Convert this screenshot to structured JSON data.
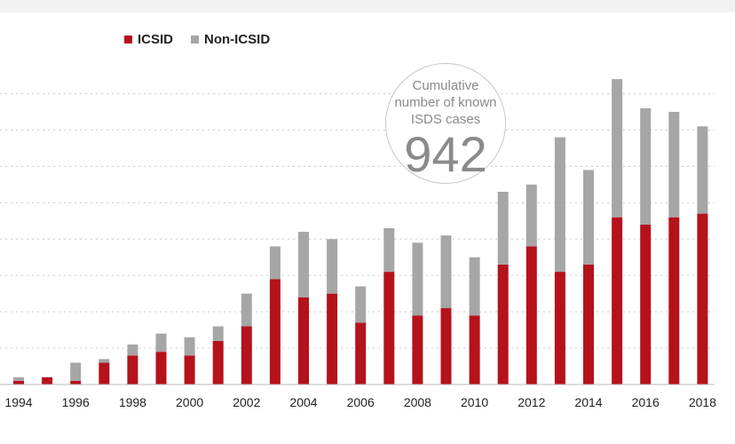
{
  "chart_data": {
    "type": "bar",
    "stacked": true,
    "categories": [
      "1994",
      "1995",
      "1996",
      "1997",
      "1998",
      "1999",
      "2000",
      "2001",
      "2002",
      "2003",
      "2004",
      "2005",
      "2006",
      "2007",
      "2008",
      "2009",
      "2010",
      "2011",
      "2012",
      "2013",
      "2014",
      "2015",
      "2016",
      "2017",
      "2018"
    ],
    "xticklabels": [
      "1994",
      "1996",
      "1998",
      "2000",
      "2002",
      "2004",
      "2006",
      "2008",
      "2010",
      "2012",
      "2014",
      "2016",
      "2018"
    ],
    "series": [
      {
        "name": "ICSID",
        "color": "#b5121b",
        "values": [
          1,
          2,
          1,
          6,
          8,
          9,
          8,
          12,
          16,
          29,
          24,
          25,
          17,
          31,
          19,
          21,
          19,
          33,
          38,
          31,
          33,
          46,
          44,
          46,
          47
        ]
      },
      {
        "name": "Non-ICSID",
        "color": "#a6a6a6",
        "values": [
          1,
          0,
          5,
          1,
          3,
          5,
          5,
          4,
          9,
          9,
          18,
          15,
          10,
          12,
          20,
          20,
          16,
          20,
          17,
          37,
          26,
          38,
          32,
          29,
          24
        ]
      }
    ],
    "ylim": [
      0,
      85
    ],
    "grid": true,
    "legend": "top-left"
  },
  "legend": {
    "icsid": "ICSID",
    "non_icsid": "Non-ICSID"
  },
  "callout": {
    "label": "Cumulative number of known ISDS cases",
    "value": "942"
  }
}
